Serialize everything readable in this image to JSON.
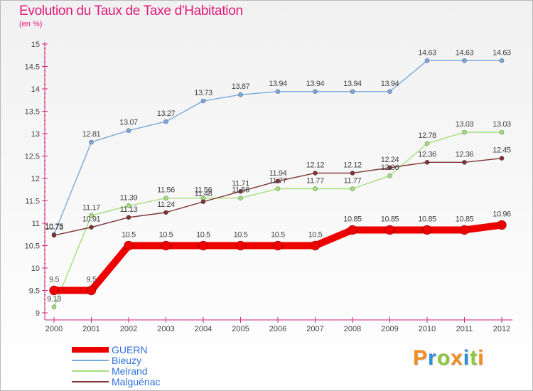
{
  "chart_data": {
    "type": "line",
    "title": "Evolution du Taux de Taxe d'Habitation",
    "subtitle": "(en %)",
    "categories": [
      "2000",
      "2001",
      "2002",
      "2003",
      "2004",
      "2005",
      "2006",
      "2007",
      "2008",
      "2009",
      "2010",
      "2011",
      "2012"
    ],
    "ylim": [
      9,
      15
    ],
    "yticks": [
      "9",
      "9.5",
      "10",
      "10.5",
      "11",
      "11.5",
      "12",
      "12.5",
      "13",
      "13.5",
      "14",
      "14.5",
      "15"
    ],
    "grid": false,
    "legend_position": "bottom-left",
    "series": [
      {
        "name": "GUERN",
        "color": "#ee0000",
        "emphasis": true,
        "values": [
          9.5,
          9.5,
          10.5,
          10.5,
          10.5,
          10.5,
          10.5,
          10.5,
          10.85,
          10.85,
          10.85,
          10.85,
          10.96
        ],
        "labels": [
          "9.5",
          "9.5",
          "10.5",
          "10.5",
          "10.5",
          "10.5",
          "10.5",
          "10.5",
          "10.85",
          "10.85",
          "10.85",
          "10.85",
          "10.96"
        ]
      },
      {
        "name": "Bieuzy",
        "color": "#7aa9dc",
        "emphasis": false,
        "values": [
          10.75,
          12.81,
          13.07,
          13.27,
          13.73,
          13.87,
          13.94,
          13.94,
          13.94,
          13.94,
          14.63,
          14.63,
          14.63
        ],
        "labels": [
          "10.75",
          "12.81",
          "13.07",
          "13.27",
          "13.73",
          "13.87",
          "13.94",
          "13.94",
          "13.94",
          "13.94",
          "14.63",
          "14.63",
          "14.63"
        ]
      },
      {
        "name": "Melrand",
        "color": "#a2e07a",
        "emphasis": false,
        "values": [
          9.13,
          11.17,
          11.39,
          11.56,
          11.56,
          11.56,
          11.77,
          11.77,
          11.77,
          12.06,
          12.78,
          13.03,
          13.03
        ],
        "labels": [
          "9.13",
          "11.17",
          "11.39",
          "11.56",
          "11.56",
          "11.56",
          "11.77",
          "11.77",
          "11.77",
          "12.06",
          "12.78",
          "13.03",
          "13.03"
        ]
      },
      {
        "name": "Malguénac",
        "color": "#7e3434",
        "emphasis": false,
        "values": [
          10.73,
          10.91,
          11.13,
          11.24,
          11.48,
          11.71,
          11.94,
          12.12,
          12.12,
          12.24,
          12.36,
          12.36,
          12.45
        ],
        "labels": [
          "10.73",
          "10.91",
          "11.13",
          "11.24",
          "11.48",
          "11.71",
          "11.94",
          "12.12",
          "12.12",
          "12.24",
          "12.36",
          "12.36",
          "12.45"
        ]
      }
    ]
  },
  "brand": {
    "text": "Proxiti",
    "letters": [
      {
        "char": "P",
        "color": "#f28c1e"
      },
      {
        "char": "r",
        "color": "#2e8fd6"
      },
      {
        "char": "o",
        "color": "#8dc63f"
      },
      {
        "char": "x",
        "color": "#f28c1e"
      },
      {
        "char": "i",
        "color": "#2e8fd6"
      },
      {
        "char": "t",
        "color": "#8dc63f"
      },
      {
        "char": "i",
        "color": "#f28c1e"
      }
    ]
  }
}
